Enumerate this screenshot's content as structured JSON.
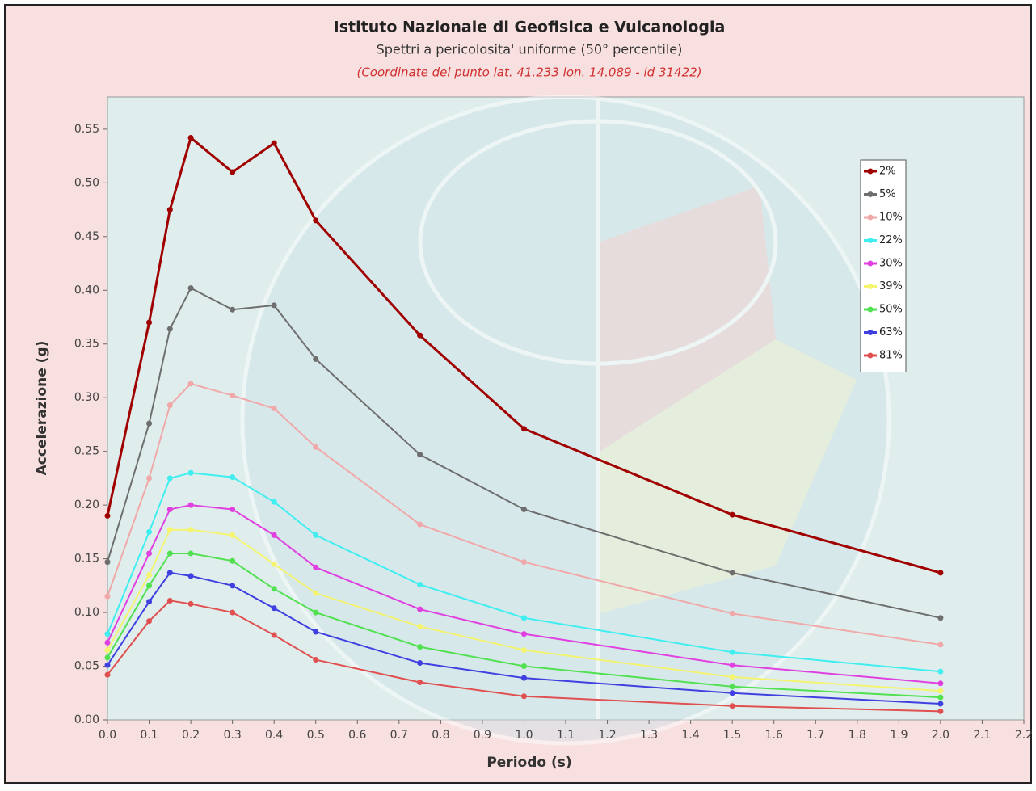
{
  "chart_data": {
    "type": "line",
    "title": "Istituto Nazionale di Geofisica e Vulcanologia",
    "subtitle": "Spettri a pericolosita' uniforme (50° percentile)",
    "note": "(Coordinate del punto  lat. 41.233 lon. 14.089 - id 31422)",
    "x_label": "Periodo (s)",
    "y_label": "Accelerazione (g)",
    "x": [
      0,
      0.1,
      0.15,
      0.2,
      0.3,
      0.4,
      0.5,
      0.75,
      1.0,
      1.5,
      2.0
    ],
    "xlim": [
      0,
      2.2
    ],
    "ylim": [
      0,
      0.58
    ],
    "xticks": [
      {
        "value": 0,
        "label": "0.0"
      },
      0.1,
      0.2,
      0.3,
      0.4,
      0.5,
      0.6,
      0.7,
      0.8,
      0.9,
      {
        "value": 1,
        "label": "1.0"
      },
      1.1,
      1.2,
      1.3,
      1.4,
      1.5,
      1.6,
      1.7,
      1.8,
      1.9,
      {
        "value": 2,
        "label": "2.0"
      },
      2.1,
      2.2
    ],
    "yticks": [
      {
        "value": 0,
        "label": "0.00"
      },
      0.05,
      {
        "value": 0.1,
        "label": "0.10"
      },
      0.15,
      {
        "value": 0.2,
        "label": "0.20"
      },
      0.25,
      {
        "value": 0.3,
        "label": "0.30"
      },
      0.35,
      {
        "value": 0.4,
        "label": "0.40"
      },
      0.45,
      {
        "value": 0.5,
        "label": "0.50"
      },
      0.55
    ],
    "legend": "top-right",
    "series": [
      {
        "name": "2%",
        "color": "#a00000",
        "values": [
          0.19,
          0.37,
          0.475,
          0.542,
          0.51,
          0.537,
          0.465,
          0.358,
          0.271,
          0.191,
          0.137
        ]
      },
      {
        "name": "5%",
        "color": "#6e6e6e",
        "values": [
          0.147,
          0.276,
          0.364,
          0.402,
          0.382,
          0.386,
          0.336,
          0.247,
          0.196,
          0.137,
          0.095
        ]
      },
      {
        "name": "10%",
        "color": "#f0a8a8",
        "values": [
          0.115,
          0.225,
          0.293,
          0.313,
          0.302,
          0.29,
          0.254,
          0.182,
          0.147,
          0.099,
          0.07
        ]
      },
      {
        "name": "22%",
        "color": "#40eef0",
        "values": [
          0.08,
          0.175,
          0.225,
          0.23,
          0.226,
          0.203,
          0.172,
          0.126,
          0.095,
          0.063,
          0.045
        ]
      },
      {
        "name": "30%",
        "color": "#e040e0",
        "values": [
          0.072,
          0.155,
          0.196,
          0.2,
          0.196,
          0.172,
          0.142,
          0.103,
          0.08,
          0.051,
          0.034
        ]
      },
      {
        "name": "39%",
        "color": "#f4f470",
        "values": [
          0.065,
          0.135,
          0.177,
          0.177,
          0.172,
          0.145,
          0.118,
          0.087,
          0.065,
          0.04,
          0.027
        ]
      },
      {
        "name": "50%",
        "color": "#50e050",
        "values": [
          0.058,
          0.125,
          0.155,
          0.155,
          0.148,
          0.122,
          0.1,
          0.068,
          0.05,
          0.031,
          0.021
        ]
      },
      {
        "name": "63%",
        "color": "#4040e0",
        "values": [
          0.051,
          0.11,
          0.137,
          0.134,
          0.125,
          0.104,
          0.082,
          0.053,
          0.039,
          0.025,
          0.015
        ]
      },
      {
        "name": "81%",
        "color": "#e05050",
        "values": [
          0.042,
          0.092,
          0.111,
          0.108,
          0.1,
          0.079,
          0.056,
          0.035,
          0.022,
          0.013,
          0.008
        ]
      }
    ]
  }
}
